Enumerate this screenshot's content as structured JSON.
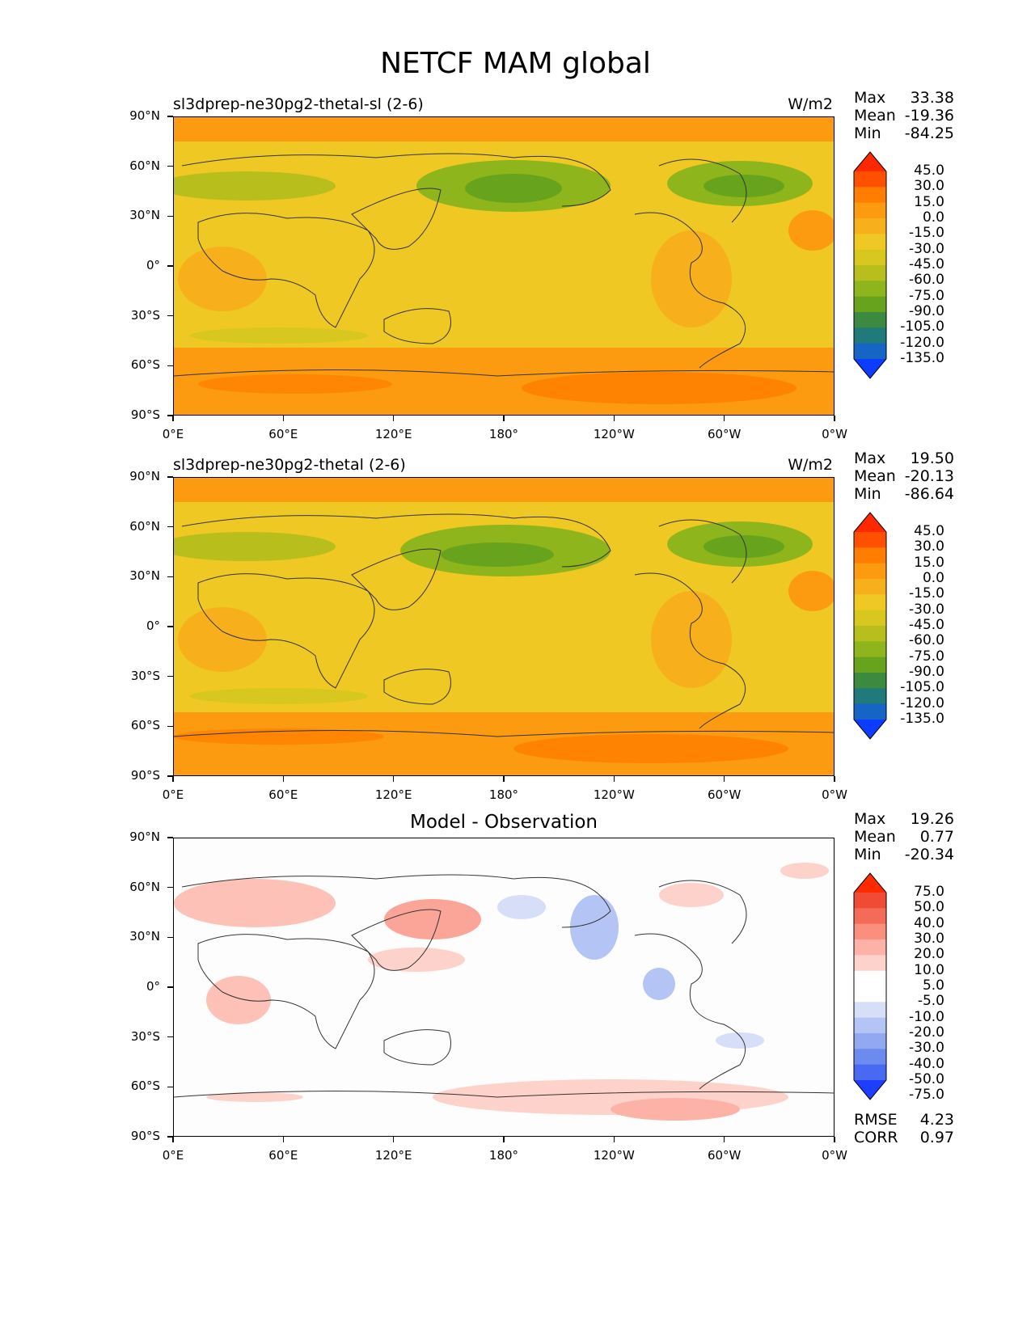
{
  "figure_title": "NETCF MAM global",
  "panels": [
    {
      "title_left": "sl3dprep-ne30pg2-thetal-sl (2-6)",
      "title_right": "W/m2",
      "stats": {
        "max_label": "Max",
        "max": "33.38",
        "mean_label": "Mean",
        "mean": "-19.36",
        "min_label": "Min",
        "min": "-84.25"
      },
      "colorbar_labels": [
        "45.0",
        "30.0",
        "15.0",
        "0.0",
        "-15.0",
        "-30.0",
        "-45.0",
        "-60.0",
        "-75.0",
        "-90.0",
        "-105.0",
        "-120.0",
        "-135.0"
      ]
    },
    {
      "title_left": "sl3dprep-ne30pg2-thetal (2-6)",
      "title_right": "W/m2",
      "stats": {
        "max_label": "Max",
        "max": "19.50",
        "mean_label": "Mean",
        "mean": "-20.13",
        "min_label": "Min",
        "min": "-86.64"
      },
      "colorbar_labels": [
        "45.0",
        "30.0",
        "15.0",
        "0.0",
        "-15.0",
        "-30.0",
        "-45.0",
        "-60.0",
        "-75.0",
        "-90.0",
        "-105.0",
        "-120.0",
        "-135.0"
      ]
    },
    {
      "title_center": "Model - Observation",
      "stats": {
        "max_label": "Max",
        "max": "19.26",
        "mean_label": "Mean",
        "mean": "0.77",
        "min_label": "Min",
        "min": "-20.34"
      },
      "colorbar_labels": [
        "75.0",
        "50.0",
        "40.0",
        "30.0",
        "20.0",
        "10.0",
        "5.0",
        "-5.0",
        "-10.0",
        "-20.0",
        "-30.0",
        "-40.0",
        "-50.0",
        "-75.0"
      ],
      "rmse_label": "RMSE",
      "rmse": "4.23",
      "corr_label": "CORR",
      "corr": "0.97"
    }
  ],
  "axes": {
    "y_labels": [
      "90°N",
      "60°N",
      "30°N",
      "0°",
      "30°S",
      "60°S",
      "90°S"
    ],
    "x_labels": [
      "0°E",
      "60°E",
      "120°E",
      "180°",
      "120°W",
      "60°W",
      "0°W"
    ]
  },
  "colormaps": {
    "field": [
      "#ff2800",
      "#ff5000",
      "#ff7d00",
      "#fc9b10",
      "#f7b01c",
      "#efc823",
      "#d7c71f",
      "#b8be1c",
      "#8fb51c",
      "#68a31d",
      "#3c8a3f",
      "#207a7c",
      "#1664c4",
      "#0b3cff"
    ],
    "diff": [
      "#ff2a00",
      "#f04b34",
      "#f46c58",
      "#fa8f7e",
      "#fcb2a6",
      "#fdd2cb",
      "#ffffff",
      "#ffffff",
      "#d6def8",
      "#b4c4f4",
      "#92a8f0",
      "#6d8bef",
      "#4a69f2",
      "#1d3dff"
    ]
  }
}
